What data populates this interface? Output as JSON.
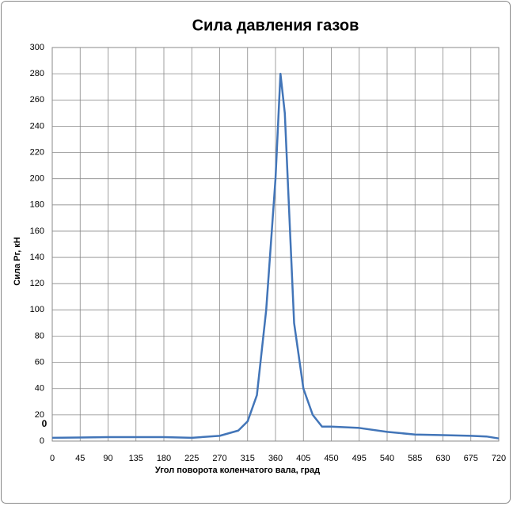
{
  "chart_data": {
    "type": "line",
    "title": "Сила давления газов",
    "x_label": "Угол поворота коленчатого вала, град",
    "y_label": "Сила Pг, кН",
    "annotation": "0",
    "x": [
      0,
      45,
      90,
      135,
      180,
      225,
      270,
      300,
      315,
      330,
      345,
      360,
      368,
      375,
      390,
      405,
      420,
      435,
      450,
      495,
      540,
      585,
      630,
      675,
      700,
      720
    ],
    "series": [
      {
        "name": "Pг",
        "color": "#4275b8",
        "values": [
          2.5,
          2.7,
          3,
          3,
          3,
          2.5,
          4,
          8,
          15,
          35,
          100,
          200,
          280,
          250,
          90,
          40,
          20,
          11,
          11,
          10,
          7,
          5,
          4.5,
          4,
          3.5,
          2
        ]
      }
    ],
    "xlim": [
      0,
      720
    ],
    "xticks": [
      0,
      45,
      90,
      135,
      180,
      225,
      270,
      315,
      360,
      405,
      450,
      495,
      540,
      585,
      630,
      675,
      720
    ],
    "ylim": [
      0,
      300
    ],
    "yticks": [
      0,
      20,
      40,
      60,
      80,
      100,
      120,
      140,
      160,
      180,
      200,
      220,
      240,
      260,
      280,
      300
    ],
    "grid": true
  }
}
